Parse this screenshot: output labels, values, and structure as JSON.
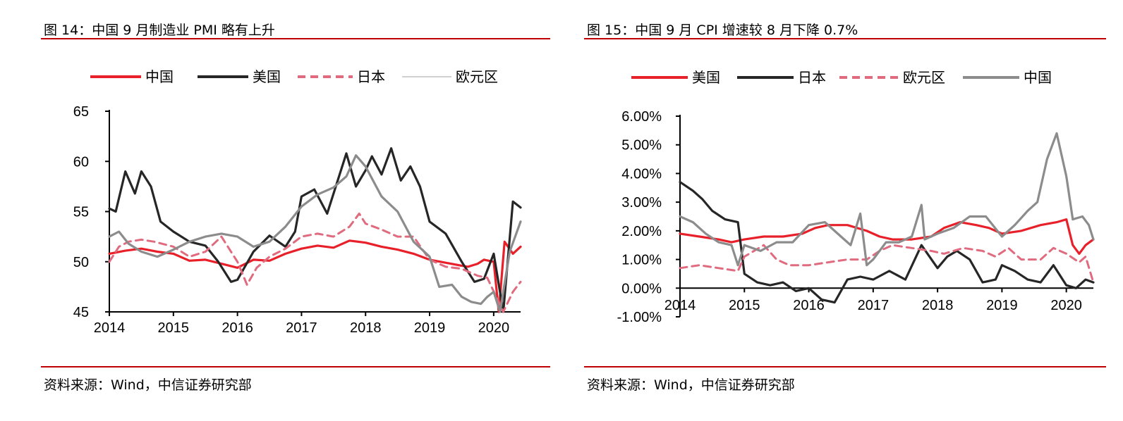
{
  "left": {
    "title": "图 14：中国 9 月制造业 PMI 略有上升",
    "source": "资料来源：Wind，中信证券研究部"
  },
  "right": {
    "title": "图 15：中国 9 月 CPI 增速较 8 月下降 0.7%",
    "source": "资料来源：Wind，中信证券研究部"
  },
  "colors": {
    "accent_rule": "#c00000",
    "red": "#e8202a",
    "black": "#262626",
    "pink": "#e06b7f",
    "gray": "#8c8c8c",
    "lightgray": "#b3b3b3"
  },
  "chart_data": [
    {
      "type": "line",
      "legend_position": "top",
      "ylim": [
        45,
        65
      ],
      "yticks": [
        "65",
        "60",
        "55",
        "50",
        "45"
      ],
      "xticks": [
        "2014",
        "2015",
        "2016",
        "2017",
        "2018",
        "2019",
        "2020"
      ],
      "grid": false,
      "series": [
        {
          "name": "中国",
          "style": "solid",
          "color": "red",
          "x": [
            2014.0,
            2014.25,
            2014.5,
            2014.75,
            2015.0,
            2015.25,
            2015.5,
            2015.75,
            2016.0,
            2016.25,
            2016.5,
            2016.75,
            2017.0,
            2017.25,
            2017.5,
            2017.75,
            2018.0,
            2018.25,
            2018.5,
            2018.75,
            2019.0,
            2019.25,
            2019.5,
            2019.6,
            2019.75,
            2019.85,
            2020.0,
            2020.08,
            2020.17,
            2020.3,
            2020.42
          ],
          "values": [
            50.8,
            51.1,
            51.3,
            51.0,
            50.8,
            50.1,
            50.2,
            49.8,
            49.4,
            50.2,
            50.1,
            50.8,
            51.3,
            51.6,
            51.4,
            52.1,
            51.9,
            51.5,
            51.2,
            50.8,
            50.2,
            49.9,
            49.6,
            49.5,
            49.8,
            50.2,
            50.0,
            45.0,
            52.0,
            50.8,
            51.5
          ]
        },
        {
          "name": "美国",
          "style": "solid",
          "color": "black",
          "x": [
            2014.0,
            2014.1,
            2014.25,
            2014.4,
            2014.5,
            2014.65,
            2014.8,
            2015.0,
            2015.25,
            2015.5,
            2015.7,
            2015.9,
            2016.0,
            2016.25,
            2016.5,
            2016.75,
            2016.9,
            2017.0,
            2017.2,
            2017.4,
            2017.55,
            2017.7,
            2017.85,
            2018.0,
            2018.1,
            2018.25,
            2018.4,
            2018.55,
            2018.7,
            2018.85,
            2019.0,
            2019.25,
            2019.5,
            2019.7,
            2019.85,
            2020.0,
            2020.15,
            2020.3,
            2020.42
          ],
          "values": [
            55.3,
            55.0,
            59.0,
            56.8,
            59.0,
            57.5,
            54.0,
            53.0,
            52.0,
            51.6,
            50.0,
            48.0,
            48.2,
            51.0,
            52.6,
            51.5,
            53.0,
            56.5,
            57.2,
            54.8,
            57.8,
            60.8,
            57.5,
            59.1,
            60.5,
            58.7,
            61.3,
            58.1,
            59.5,
            57.5,
            54.0,
            52.8,
            50.0,
            48.0,
            48.3,
            50.8,
            45.0,
            56.0,
            55.4
          ]
        },
        {
          "name": "日本",
          "style": "dashed",
          "color": "pink",
          "x": [
            2014.0,
            2014.15,
            2014.3,
            2014.5,
            2014.7,
            2015.0,
            2015.25,
            2015.5,
            2015.75,
            2016.0,
            2016.15,
            2016.3,
            2016.5,
            2016.75,
            2017.0,
            2017.25,
            2017.5,
            2017.75,
            2017.9,
            2018.0,
            2018.25,
            2018.5,
            2018.75,
            2019.0,
            2019.25,
            2019.5,
            2019.75,
            2019.9,
            2020.15,
            2020.3,
            2020.42
          ],
          "values": [
            50.0,
            51.5,
            52.0,
            52.2,
            52.0,
            51.5,
            50.5,
            51.0,
            52.5,
            50.0,
            47.7,
            49.4,
            50.5,
            51.3,
            52.5,
            52.8,
            52.5,
            53.5,
            54.8,
            53.8,
            53.2,
            52.5,
            52.5,
            50.2,
            49.5,
            49.3,
            48.6,
            48.4,
            45.0,
            47.0,
            48.0
          ]
        },
        {
          "name": "欧元区",
          "style": "solid",
          "color": "gray",
          "thin_legend": true,
          "x": [
            2014.0,
            2014.15,
            2014.3,
            2014.5,
            2014.75,
            2015.0,
            2015.25,
            2015.5,
            2015.75,
            2016.0,
            2016.25,
            2016.5,
            2016.75,
            2017.0,
            2017.25,
            2017.5,
            2017.7,
            2017.85,
            2018.0,
            2018.25,
            2018.5,
            2018.75,
            2019.0,
            2019.15,
            2019.35,
            2019.5,
            2019.65,
            2019.8,
            2019.9,
            2020.0,
            2020.1,
            2020.25,
            2020.42
          ],
          "values": [
            52.5,
            53.0,
            51.8,
            51.0,
            50.5,
            51.2,
            52.0,
            52.5,
            52.8,
            52.5,
            51.5,
            52.0,
            53.5,
            55.5,
            56.7,
            57.4,
            58.5,
            60.6,
            59.5,
            56.5,
            55.0,
            52.0,
            50.5,
            47.5,
            47.7,
            46.5,
            46.0,
            45.8,
            46.5,
            47.0,
            45.0,
            51.0,
            54.0
          ]
        }
      ]
    },
    {
      "type": "line",
      "legend_position": "top",
      "ylim": [
        -0.01,
        0.06
      ],
      "yticks": [
        "6.00%",
        "5.00%",
        "4.00%",
        "3.00%",
        "2.00%",
        "1.00%",
        "0.00%",
        "-1.00%"
      ],
      "xticks": [
        "2014",
        "2015",
        "2016",
        "2017",
        "2018",
        "2019",
        "2020"
      ],
      "grid": false,
      "series": [
        {
          "name": "美国",
          "style": "solid",
          "color": "red",
          "x": [
            2014.0,
            2014.3,
            2014.6,
            2014.8,
            2015.0,
            2015.3,
            2015.6,
            2015.9,
            2016.1,
            2016.3,
            2016.6,
            2016.9,
            2017.1,
            2017.3,
            2017.6,
            2017.9,
            2018.1,
            2018.35,
            2018.6,
            2018.8,
            2019.0,
            2019.3,
            2019.6,
            2019.85,
            2020.0,
            2020.1,
            2020.2,
            2020.3,
            2020.42
          ],
          "values": [
            0.019,
            0.018,
            0.017,
            0.016,
            0.017,
            0.018,
            0.018,
            0.019,
            0.021,
            0.022,
            0.022,
            0.02,
            0.018,
            0.017,
            0.017,
            0.018,
            0.021,
            0.023,
            0.022,
            0.021,
            0.019,
            0.02,
            0.022,
            0.023,
            0.024,
            0.015,
            0.012,
            0.015,
            0.017
          ]
        },
        {
          "name": "日本",
          "style": "solid",
          "color": "black",
          "x": [
            2014.0,
            2014.2,
            2014.35,
            2014.5,
            2014.7,
            2014.9,
            2015.0,
            2015.2,
            2015.4,
            2015.6,
            2015.8,
            2016.0,
            2016.2,
            2016.4,
            2016.6,
            2016.8,
            2017.0,
            2017.25,
            2017.5,
            2017.75,
            2018.0,
            2018.15,
            2018.3,
            2018.5,
            2018.7,
            2018.9,
            2019.0,
            2019.2,
            2019.4,
            2019.6,
            2019.8,
            2020.0,
            2020.15,
            2020.3,
            2020.42
          ],
          "values": [
            0.037,
            0.034,
            0.031,
            0.027,
            0.024,
            0.023,
            0.005,
            0.002,
            0.001,
            0.002,
            -0.001,
            0.0,
            -0.004,
            -0.005,
            0.003,
            0.004,
            0.003,
            0.006,
            0.003,
            0.015,
            0.007,
            0.011,
            0.013,
            0.01,
            0.002,
            0.003,
            0.008,
            0.006,
            0.003,
            0.002,
            0.008,
            0.001,
            0.0,
            0.003,
            0.002
          ]
        },
        {
          "name": "欧元区",
          "style": "dashed",
          "color": "pink",
          "x": [
            2014.0,
            2014.3,
            2014.6,
            2014.9,
            2015.0,
            2015.3,
            2015.5,
            2015.7,
            2016.0,
            2016.3,
            2016.6,
            2016.9,
            2017.1,
            2017.3,
            2017.6,
            2017.9,
            2018.1,
            2018.4,
            2018.7,
            2018.9,
            2019.1,
            2019.3,
            2019.6,
            2019.8,
            2020.0,
            2020.2,
            2020.3,
            2020.42
          ],
          "values": [
            0.007,
            0.008,
            0.007,
            0.006,
            0.011,
            0.015,
            0.01,
            0.008,
            0.008,
            0.009,
            0.01,
            0.01,
            0.013,
            0.015,
            0.014,
            0.013,
            0.012,
            0.014,
            0.013,
            0.011,
            0.014,
            0.01,
            0.01,
            0.014,
            0.012,
            0.009,
            0.011,
            0.002
          ]
        },
        {
          "name": "中国",
          "style": "solid",
          "color": "gray",
          "x": [
            2014.0,
            2014.2,
            2014.4,
            2014.6,
            2014.8,
            2014.9,
            2015.0,
            2015.25,
            2015.5,
            2015.75,
            2016.0,
            2016.25,
            2016.5,
            2016.65,
            2016.8,
            2016.9,
            2017.0,
            2017.2,
            2017.4,
            2017.6,
            2017.75,
            2017.8,
            2018.0,
            2018.25,
            2018.5,
            2018.75,
            2019.0,
            2019.2,
            2019.4,
            2019.55,
            2019.7,
            2019.85,
            2020.0,
            2020.1,
            2020.25,
            2020.35,
            2020.42
          ],
          "values": [
            0.025,
            0.023,
            0.019,
            0.016,
            0.015,
            0.008,
            0.015,
            0.013,
            0.016,
            0.016,
            0.022,
            0.023,
            0.018,
            0.015,
            0.026,
            0.008,
            0.01,
            0.016,
            0.016,
            0.018,
            0.029,
            0.017,
            0.019,
            0.021,
            0.025,
            0.025,
            0.018,
            0.022,
            0.027,
            0.03,
            0.045,
            0.054,
            0.039,
            0.024,
            0.025,
            0.022,
            0.017
          ]
        }
      ]
    }
  ]
}
